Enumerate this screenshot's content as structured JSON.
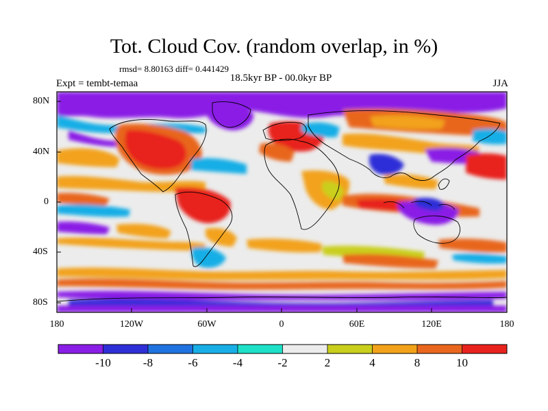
{
  "title": "Tot. Cloud Cov. (random overlap, in %)",
  "stats": "rmsd= 8.80163 diff= 0.441429",
  "left_label": "Expt = tembt-temaa",
  "center_label": "18.5kyr BP - 00.0kyr BP",
  "right_label": "JJA",
  "map": {
    "projection": "cylindrical-equidistant",
    "lon_range": [
      -180,
      180
    ],
    "lat_range": [
      -90,
      90
    ],
    "lat_ticks": [
      "80N",
      "40N",
      "0",
      "40S",
      "80S"
    ],
    "lon_ticks": [
      "180",
      "120W",
      "60W",
      "0",
      "60E",
      "120E",
      "180"
    ]
  },
  "colorbar": {
    "labels": [
      "-10",
      "-8",
      "-6",
      "-4",
      "-2",
      "2",
      "4",
      "8",
      "10"
    ],
    "colors": [
      "#8a1ee6",
      "#2f2fd8",
      "#1f73e0",
      "#19aee6",
      "#1ee0c6",
      "#ececec",
      "#c9cf1c",
      "#f2a21a",
      "#e8661e",
      "#e8231e"
    ]
  }
}
